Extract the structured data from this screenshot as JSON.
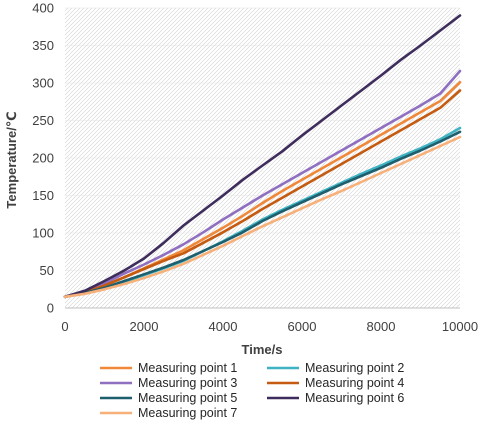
{
  "chart_data": {
    "type": "line",
    "xlabel": "Time/s",
    "ylabel": "Temperature/℃",
    "xlim": [
      0,
      10000
    ],
    "ylim": [
      0,
      400
    ],
    "x_ticks": [
      "0",
      "2000",
      "4000",
      "6000",
      "8000",
      "10000"
    ],
    "y_ticks": [
      "0",
      "50",
      "100",
      "150",
      "200",
      "250",
      "300",
      "350",
      "400"
    ],
    "grid": "diagonal hatch background",
    "legend_position": "bottom",
    "series": [
      {
        "name": "Measuring point 1",
        "color": "#f0883a",
        "x": [
          0,
          500,
          1000,
          1500,
          2000,
          2500,
          3000,
          3500,
          4000,
          4500,
          5000,
          5500,
          6000,
          6500,
          7000,
          7500,
          8000,
          8500,
          9000,
          9500,
          10000
        ],
        "y": [
          15,
          21,
          30,
          41,
          53,
          65,
          77,
          92,
          107,
          123,
          140,
          156,
          171,
          186,
          201,
          216,
          231,
          246,
          261,
          276,
          301
        ]
      },
      {
        "name": "Measuring point 2",
        "color": "#3fb3c3",
        "x": [
          0,
          500,
          1000,
          1500,
          2000,
          2500,
          3000,
          3500,
          4000,
          4500,
          5000,
          5500,
          6000,
          6500,
          7000,
          7500,
          8000,
          8500,
          9000,
          9500,
          10000
        ],
        "y": [
          15,
          20,
          27,
          35,
          44,
          53,
          63,
          76,
          89,
          103,
          118,
          131,
          143,
          155,
          167,
          179,
          190,
          202,
          213,
          225,
          240
        ]
      },
      {
        "name": "Measuring point 3",
        "color": "#8f6fc0",
        "x": [
          0,
          500,
          1000,
          1500,
          2000,
          2500,
          3000,
          3500,
          4000,
          4500,
          5000,
          5500,
          6000,
          6500,
          7000,
          7500,
          8000,
          8500,
          9000,
          9500,
          10000
        ],
        "y": [
          15,
          22,
          33,
          46,
          58,
          71,
          85,
          101,
          118,
          134,
          150,
          165,
          180,
          195,
          210,
          225,
          240,
          255,
          270,
          286,
          316
        ]
      },
      {
        "name": "Measuring point 4",
        "color": "#c55a11",
        "x": [
          0,
          500,
          1000,
          1500,
          2000,
          2500,
          3000,
          3500,
          4000,
          4500,
          5000,
          5500,
          6000,
          6500,
          7000,
          7500,
          8000,
          8500,
          9000,
          9500,
          10000
        ],
        "y": [
          15,
          21,
          30,
          41,
          52,
          63,
          73,
          87,
          101,
          116,
          132,
          147,
          162,
          177,
          192,
          207,
          222,
          237,
          252,
          267,
          290
        ]
      },
      {
        "name": "Measuring point 5",
        "color": "#1e5f6e",
        "x": [
          0,
          500,
          1000,
          1500,
          2000,
          2500,
          3000,
          3500,
          4000,
          4500,
          5000,
          5500,
          6000,
          6500,
          7000,
          7500,
          8000,
          8500,
          9000,
          9500,
          10000
        ],
        "y": [
          15,
          20,
          27,
          36,
          45,
          54,
          64,
          76,
          88,
          101,
          116,
          129,
          141,
          153,
          165,
          176,
          187,
          199,
          210,
          222,
          235
        ]
      },
      {
        "name": "Measuring point 6",
        "color": "#3e2d5c",
        "x": [
          0,
          500,
          1000,
          1500,
          2000,
          2500,
          3000,
          3500,
          4000,
          4500,
          5000,
          5500,
          6000,
          6500,
          7000,
          7500,
          8000,
          8500,
          9000,
          9500,
          10000
        ],
        "y": [
          15,
          23,
          36,
          50,
          66,
          87,
          110,
          130,
          150,
          171,
          190,
          209,
          230,
          250,
          270,
          290,
          310,
          331,
          350,
          370,
          390
        ]
      },
      {
        "name": "Measuring point 7",
        "color": "#f7b07a",
        "x": [
          0,
          500,
          1000,
          1500,
          2000,
          2500,
          3000,
          3500,
          4000,
          4500,
          5000,
          5500,
          6000,
          6500,
          7000,
          7500,
          8000,
          8500,
          9000,
          9500,
          10000
        ],
        "y": [
          15,
          19,
          25,
          32,
          40,
          49,
          59,
          71,
          83,
          96,
          109,
          121,
          133,
          145,
          156,
          168,
          180,
          192,
          204,
          216,
          228
        ]
      }
    ]
  }
}
